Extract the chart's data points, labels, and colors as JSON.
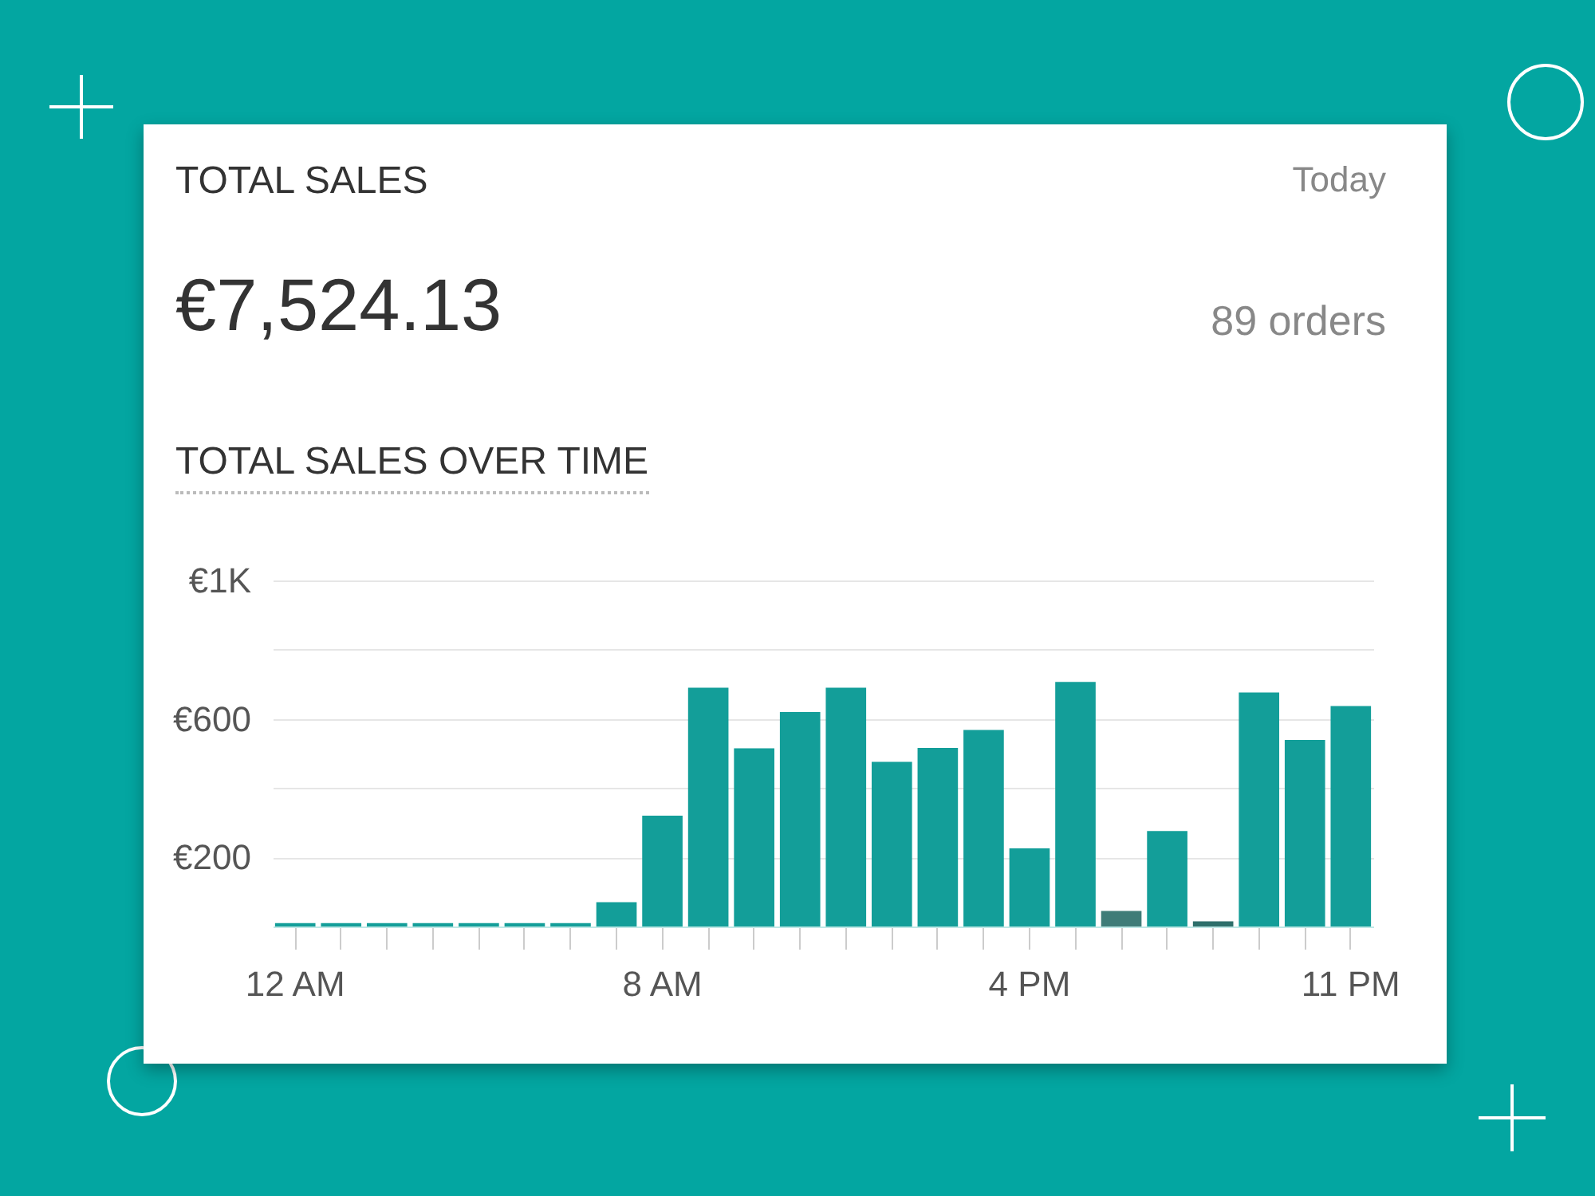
{
  "chart_data": {
    "type": "bar",
    "title": "TOTAL SALES OVER TIME",
    "annotations": [
      "TOTAL SALES",
      "Today",
      "€7,524.13",
      "89 orders"
    ],
    "categories": [
      "12 AM",
      null,
      null,
      null,
      null,
      null,
      null,
      null,
      "8 AM",
      null,
      null,
      null,
      null,
      null,
      null,
      null,
      "4 PM",
      null,
      null,
      null,
      null,
      null,
      null,
      "11 PM"
    ],
    "values": [
      10,
      10,
      10,
      10,
      10,
      10,
      10,
      70,
      320,
      690,
      515,
      620,
      690,
      476,
      516,
      568,
      226,
      707,
      45,
      276,
      15,
      676,
      539,
      637
    ],
    "colors": [
      "#139e99",
      "#139e99",
      "#139e99",
      "#139e99",
      "#139e99",
      "#139e99",
      "#139e99",
      "#139e99",
      "#139e99",
      "#139e99",
      "#139e99",
      "#139e99",
      "#139e99",
      "#139e99",
      "#139e99",
      "#139e99",
      "#139e99",
      "#139e99",
      "#3f7c78",
      "#139e99",
      "#2e6f6b",
      "#139e99",
      "#139e99",
      "#139e99"
    ],
    "ylim": [
      0,
      1000
    ],
    "yticks": [
      {
        "value": 200,
        "label": "€200"
      },
      {
        "value": 400,
        "label": null
      },
      {
        "value": 600,
        "label": "€600"
      },
      {
        "value": 800,
        "label": null
      },
      {
        "value": 1000,
        "label": "€1K"
      }
    ],
    "grid": "y"
  }
}
